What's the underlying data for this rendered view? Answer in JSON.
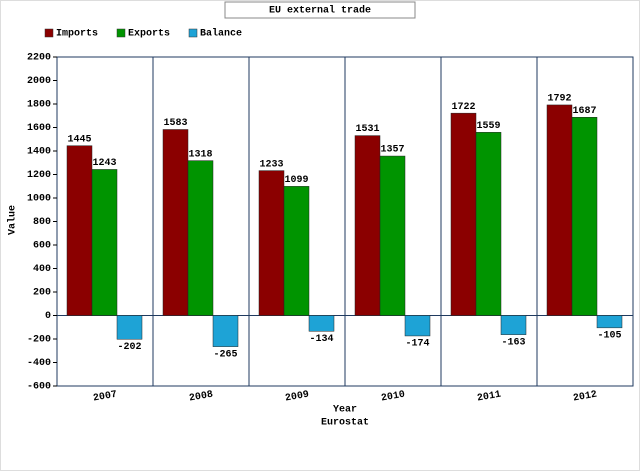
{
  "chart_data": {
    "type": "bar",
    "title": "EU external trade",
    "x_label": "Year",
    "y_label": "Value",
    "source": "Eurostat",
    "categories": [
      "2007",
      "2008",
      "2009",
      "2010",
      "2011",
      "2012"
    ],
    "series": [
      {
        "name": "Imports",
        "color": "#8b0000",
        "values": [
          1445,
          1583,
          1233,
          1531,
          1722,
          1792
        ]
      },
      {
        "name": "Exports",
        "color": "#009400",
        "values": [
          1243,
          1318,
          1099,
          1357,
          1559,
          1687
        ]
      },
      {
        "name": "Balance",
        "color": "#1ea3d6",
        "values": [
          -202,
          -265,
          -134,
          -174,
          -163,
          -105
        ]
      }
    ],
    "ylim": [
      -600,
      2200
    ],
    "yticks": [
      -600,
      -400,
      -200,
      0,
      200,
      400,
      600,
      800,
      1000,
      1200,
      1400,
      1600,
      1800,
      2000,
      2200
    ]
  }
}
